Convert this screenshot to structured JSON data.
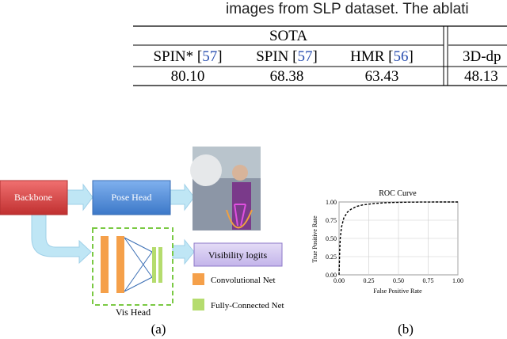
{
  "caption_top": "images from SLP dataset. The ablati",
  "table": {
    "group_header": "SOTA",
    "columns": [
      {
        "prefix": "SPIN* [",
        "ref": "57",
        "suffix": "]"
      },
      {
        "prefix": "SPIN [",
        "ref": "57",
        "suffix": "]"
      },
      {
        "prefix": "HMR [",
        "ref": "56",
        "suffix": "]"
      },
      {
        "prefix": "3D-dp"
      }
    ],
    "row": [
      "80.10",
      "68.38",
      "63.43",
      "48.13"
    ]
  },
  "diagram": {
    "backbone": "Backbone",
    "pose_head": "Pose Head",
    "visibility_logits": "Visibility logits",
    "vis_head": "Vis Head",
    "legend_conv": "Convolutional Net",
    "legend_fc": "Fully-Connected Net",
    "label_a": "(a)",
    "label_b": "(b)"
  },
  "chart_data": {
    "type": "line",
    "title": "ROC Curve",
    "xlabel": "False Positive Rate",
    "ylabel": "True Positive Rate",
    "x": [
      0,
      0.005,
      0.01,
      0.02,
      0.04,
      0.07,
      0.1,
      0.15,
      0.2,
      0.3,
      0.4,
      0.5,
      0.6,
      0.8,
      1.0
    ],
    "values": [
      0,
      0.3,
      0.5,
      0.65,
      0.78,
      0.86,
      0.9,
      0.94,
      0.96,
      0.98,
      0.99,
      0.995,
      0.998,
      1.0,
      1.0
    ],
    "color": "#000000",
    "xlim": [
      0,
      1
    ],
    "ylim": [
      0,
      1
    ],
    "xticks": [
      {
        "value": 0,
        "label": "0.00"
      },
      {
        "value": 0.25,
        "label": "0.25"
      },
      {
        "value": 0.5,
        "label": "0.50"
      },
      {
        "value": 0.75,
        "label": "0.75"
      },
      {
        "value": 1,
        "label": "1.00"
      }
    ],
    "yticks": [
      {
        "value": 0,
        "label": "0.00"
      },
      {
        "value": 0.25,
        "label": "0.25"
      },
      {
        "value": 0.5,
        "label": "0.50"
      },
      {
        "value": 0.75,
        "label": "0.75"
      },
      {
        "value": 1,
        "label": "1.00"
      }
    ],
    "grid": true
  }
}
